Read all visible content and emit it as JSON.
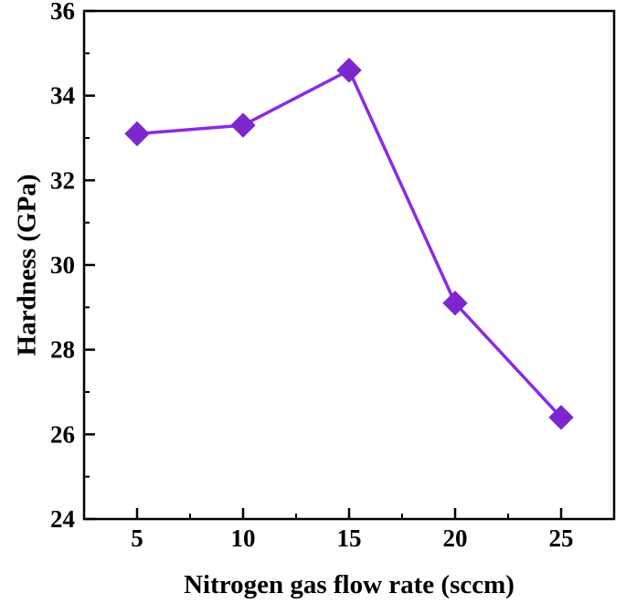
{
  "chart_data": {
    "type": "line",
    "x": [
      5,
      10,
      15,
      20,
      25
    ],
    "series": [
      {
        "name": "Hardness",
        "values": [
          33.1,
          33.3,
          34.6,
          29.1,
          26.4
        ]
      }
    ],
    "title": "",
    "xlabel": "Nitrogen gas flow rate (sccm)",
    "ylabel": "Hardness (GPa)",
    "xlim": [
      2.5,
      27.5
    ],
    "ylim": [
      24,
      36
    ],
    "x_major_ticks": [
      5,
      10,
      15,
      20,
      25
    ],
    "y_major_ticks": [
      24,
      26,
      28,
      30,
      32,
      34,
      36
    ],
    "x_minor_ticks": [
      7.5,
      12.5,
      17.5,
      22.5
    ],
    "y_minor_ticks": [
      25,
      27,
      29,
      31,
      33,
      35
    ],
    "marker": "diamond",
    "line_color": "#8A2BE2",
    "marker_color": "#7D26CD",
    "frame_color": "#000000",
    "background": "#ffffff",
    "grid": false,
    "legend": "none"
  }
}
